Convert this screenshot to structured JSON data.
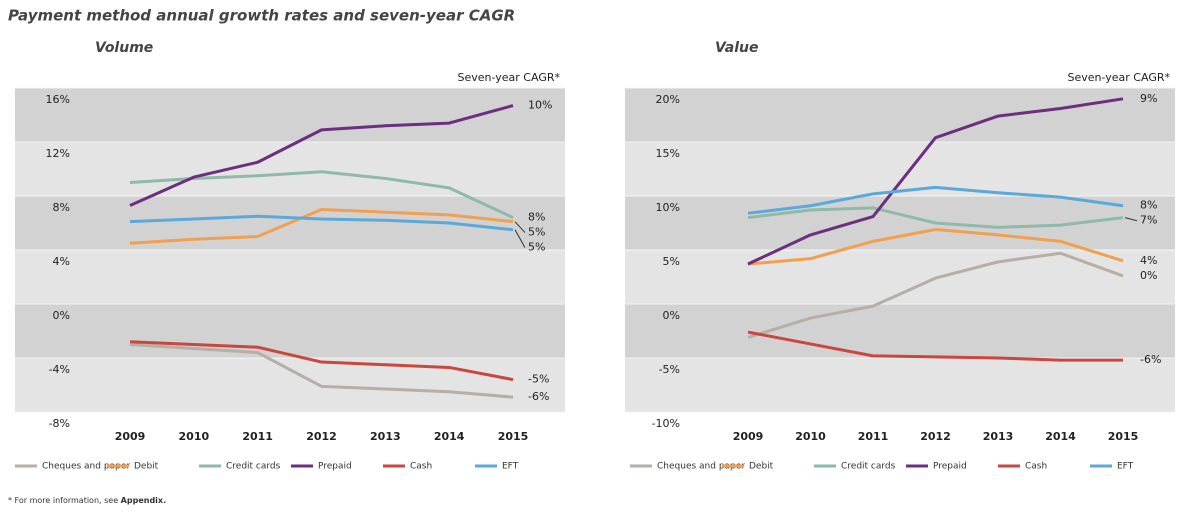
{
  "title": "Payment method annual growth rates and seven-year CAGR",
  "footnote": {
    "text": "* For more information, see ",
    "link": "Appendix."
  },
  "chart_data": [
    {
      "type": "line",
      "title": "Volume",
      "annotation": "Seven-year CAGR*",
      "categories": [
        "2009",
        "2010",
        "2011",
        "2012",
        "2013",
        "2014",
        "2015"
      ],
      "ylim": [
        -8,
        16
      ],
      "yticks": [
        {
          "value": -8,
          "label": "-8%"
        },
        {
          "value": -4,
          "label": "-4%"
        },
        {
          "value": 0,
          "label": "0%"
        },
        {
          "value": 4,
          "label": "4%"
        },
        {
          "value": 8,
          "label": "8%"
        },
        {
          "value": 12,
          "label": "12%"
        },
        {
          "value": 16,
          "label": "16%"
        }
      ],
      "series": [
        {
          "name": "Cheques and paper",
          "color": "#b7aea5",
          "values": [
            -3.0,
            -3.3,
            -3.6,
            -6.1,
            -6.3,
            -6.5,
            -6.9
          ],
          "cagr": "-6%"
        },
        {
          "name": "Debit",
          "color": "#f0a04e",
          "values": [
            4.5,
            4.8,
            5.0,
            7.0,
            6.8,
            6.6,
            6.1
          ],
          "cagr": "5%"
        },
        {
          "name": "Credit cards",
          "color": "#8fb9a9",
          "values": [
            9.0,
            9.3,
            9.5,
            9.8,
            9.3,
            8.6,
            6.4
          ],
          "cagr": "8%"
        },
        {
          "name": "Prepaid",
          "color": "#6b2f7e",
          "values": [
            7.3,
            9.4,
            10.5,
            12.9,
            13.2,
            13.4,
            14.7
          ],
          "cagr": "10%"
        },
        {
          "name": "Cash",
          "color": "#c9473e",
          "values": [
            -2.8,
            -3.0,
            -3.2,
            -4.3,
            -4.5,
            -4.7,
            -5.6
          ],
          "cagr": "-5%"
        },
        {
          "name": "EFT",
          "color": "#5aa9d9",
          "values": [
            6.1,
            6.3,
            6.5,
            6.3,
            6.2,
            6.0,
            5.5
          ],
          "cagr": "5%"
        }
      ]
    },
    {
      "type": "line",
      "title": "Value",
      "annotation": "Seven-year CAGR*",
      "categories": [
        "2009",
        "2010",
        "2011",
        "2012",
        "2013",
        "2014",
        "2015"
      ],
      "ylim": [
        -10,
        20
      ],
      "yticks": [
        {
          "value": -10,
          "label": "-10%"
        },
        {
          "value": -5,
          "label": "-5%"
        },
        {
          "value": 0,
          "label": "0%"
        },
        {
          "value": 5,
          "label": "5%"
        },
        {
          "value": 10,
          "label": "10%"
        },
        {
          "value": 15,
          "label": "15%"
        },
        {
          "value": 20,
          "label": "20%"
        }
      ],
      "series": [
        {
          "name": "Cheques and paper",
          "color": "#b7aea5",
          "values": [
            -3.1,
            -1.3,
            -0.2,
            2.4,
            3.9,
            4.7,
            2.6
          ],
          "cagr": "0%"
        },
        {
          "name": "Debit",
          "color": "#f0a04e",
          "values": [
            3.7,
            4.2,
            5.8,
            6.9,
            6.4,
            5.8,
            4.0
          ],
          "cagr": "4%"
        },
        {
          "name": "Credit cards",
          "color": "#8fb9a9",
          "values": [
            8.0,
            8.7,
            8.9,
            7.5,
            7.1,
            7.3,
            8.0
          ],
          "cagr": "7%"
        },
        {
          "name": "Prepaid",
          "color": "#6b2f7e",
          "values": [
            3.7,
            6.4,
            8.1,
            15.4,
            17.4,
            18.1,
            19.0
          ],
          "cagr": "9%"
        },
        {
          "name": "Cash",
          "color": "#c9473e",
          "values": [
            -2.6,
            -3.7,
            -4.8,
            -4.9,
            -5.0,
            -5.2,
            -5.2
          ],
          "cagr": "-6%"
        },
        {
          "name": "EFT",
          "color": "#5aa9d9",
          "values": [
            8.4,
            9.1,
            10.2,
            10.8,
            10.3,
            9.9,
            9.1
          ],
          "cagr": "8%"
        }
      ]
    }
  ]
}
